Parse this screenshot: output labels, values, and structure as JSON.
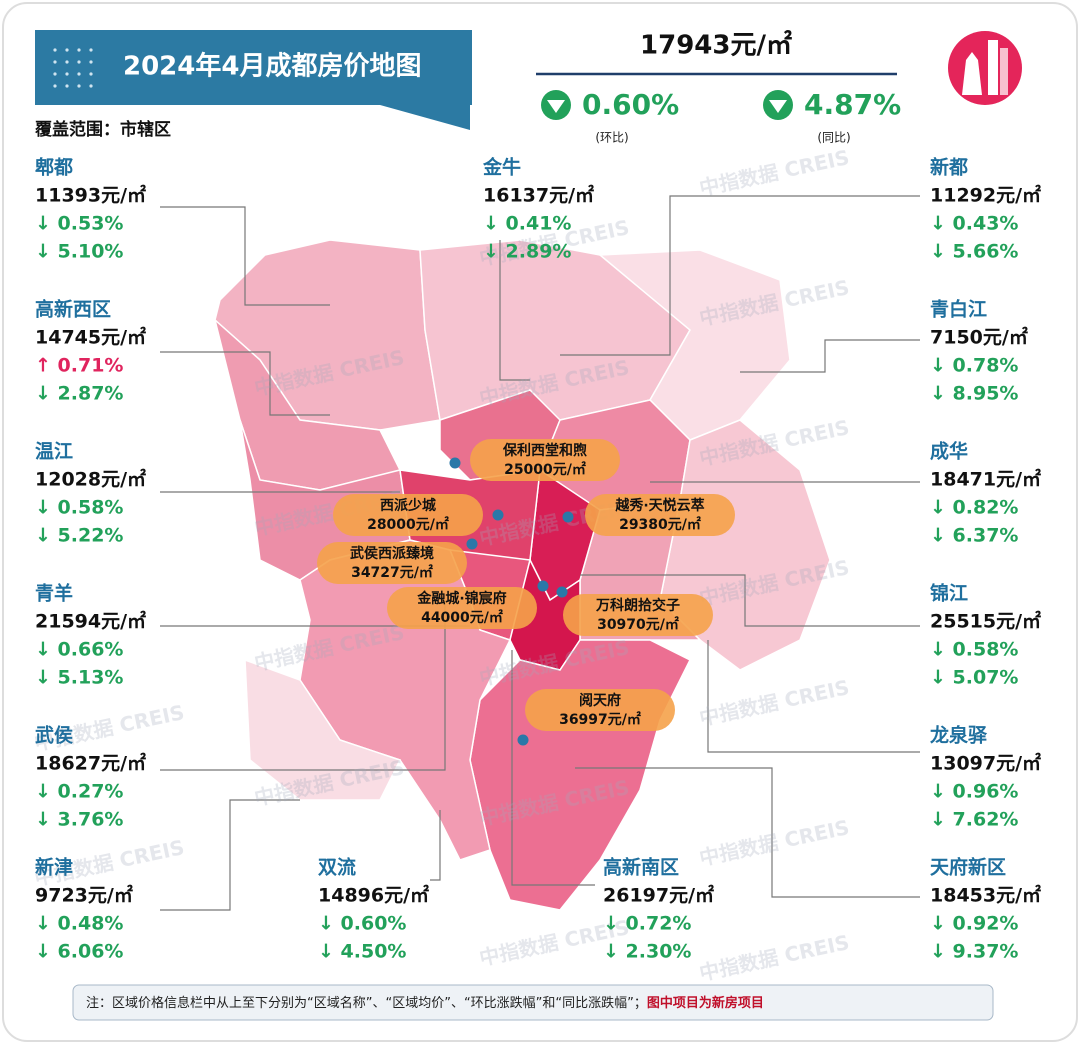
{
  "header": {
    "title": "2024年4月成都房价地图",
    "scope": "覆盖范围：市辖区",
    "avg_price": "17943元/㎡",
    "mom": "0.60%",
    "mom_label": "(环比)",
    "yoy": "4.87%",
    "yoy_label": "(同比)"
  },
  "watermark": "中指数据 CREIS",
  "districts": [
    {
      "name": "郫都",
      "price": "11393元/㎡",
      "mom": "↓ 0.53%",
      "yoy": "↓ 5.10%"
    },
    {
      "name": "高新西区",
      "price": "14745元/㎡",
      "mom": "↑ 0.71%",
      "yoy": "↓ 2.87%"
    },
    {
      "name": "温江",
      "price": "12028元/㎡",
      "mom": "↓ 0.58%",
      "yoy": "↓ 5.22%"
    },
    {
      "name": "青羊",
      "price": "21594元/㎡",
      "mom": "↓ 0.66%",
      "yoy": "↓ 5.13%"
    },
    {
      "name": "武侯",
      "price": "18627元/㎡",
      "mom": "↓ 0.27%",
      "yoy": "↓ 3.76%"
    },
    {
      "name": "新津",
      "price": "9723元/㎡",
      "mom": "↓ 0.48%",
      "yoy": "↓ 6.06%"
    },
    {
      "name": "金牛",
      "price": "16137元/㎡",
      "mom": "↓ 0.41%",
      "yoy": "↓ 2.89%"
    },
    {
      "name": "双流",
      "price": "14896元/㎡",
      "mom": "↓ 0.60%",
      "yoy": "↓ 4.50%"
    },
    {
      "name": "高新南区",
      "price": "26197元/㎡",
      "mom": "↓ 0.72%",
      "yoy": "↓ 2.30%"
    },
    {
      "name": "新都",
      "price": "11292元/㎡",
      "mom": "↓ 0.43%",
      "yoy": "↓ 5.66%"
    },
    {
      "name": "青白江",
      "price": "7150元/㎡",
      "mom": "↓ 0.78%",
      "yoy": "↓ 8.95%"
    },
    {
      "name": "成华",
      "price": "18471元/㎡",
      "mom": "↓ 0.82%",
      "yoy": "↓ 6.37%"
    },
    {
      "name": "锦江",
      "price": "25515元/㎡",
      "mom": "↓ 0.58%",
      "yoy": "↓ 5.07%"
    },
    {
      "name": "龙泉驿",
      "price": "13097元/㎡",
      "mom": "↓ 0.96%",
      "yoy": "↓ 7.62%"
    },
    {
      "name": "天府新区",
      "price": "18453元/㎡",
      "mom": "↓ 0.92%",
      "yoy": "↓ 9.37%"
    }
  ],
  "projects": [
    {
      "name": "保利西堂和煦",
      "price": "25000元/㎡"
    },
    {
      "name": "西派少城",
      "price": "28000元/㎡"
    },
    {
      "name": "越秀·天悦云萃",
      "price": "29380元/㎡"
    },
    {
      "name": "武侯西派臻境",
      "price": "34727元/㎡"
    },
    {
      "name": "金融城·锦宸府",
      "price": "44000元/㎡"
    },
    {
      "name": "万科朗拾交子",
      "price": "30970元/㎡"
    },
    {
      "name": "阅天府",
      "price": "36997元/㎡"
    }
  ],
  "note": {
    "text": "注：区域价格信息栏中从上至下分别为“区域名称”、“区域均价”、“环比涨跌幅”和“同比涨跌幅”；",
    "highlight": "图中项目为新房项目"
  }
}
